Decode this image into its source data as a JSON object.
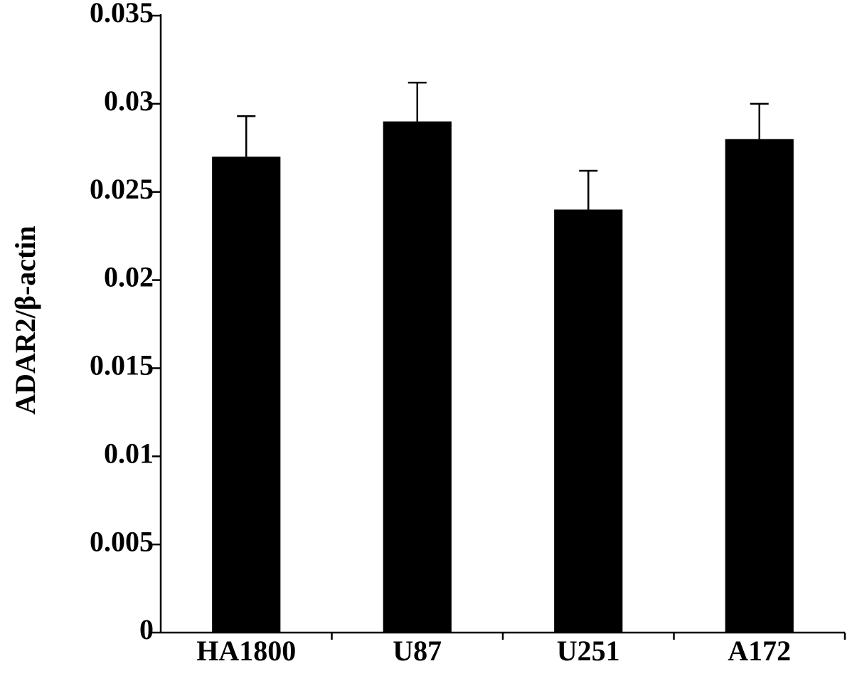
{
  "chart_data": {
    "type": "bar",
    "y_label": "ADAR2/β-actin",
    "categories": [
      "HA1800",
      "U87",
      "U251",
      "A172"
    ],
    "values": [
      0.027,
      0.029,
      0.024,
      0.028
    ],
    "errors": [
      0.0023,
      0.0022,
      0.0022,
      0.002
    ],
    "color": "#000000",
    "ylim": [
      0,
      0.035
    ],
    "yticks": [
      0,
      0.005,
      0.01,
      0.015,
      0.02,
      0.025,
      0.03,
      0.035
    ],
    "grid": false
  }
}
